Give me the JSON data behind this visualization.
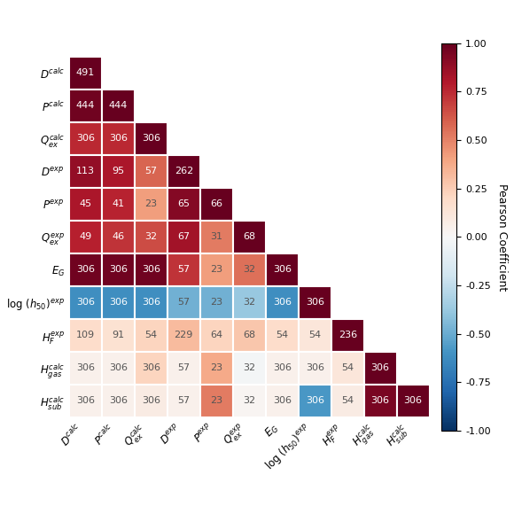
{
  "labels_y": [
    "$D^{calc}$",
    "$P^{calc}$",
    "$Q_{ex}^{calc}$",
    "$D^{exp}$",
    "$P^{exp}$",
    "$Q_{ex}^{exp}$",
    "$E_G$",
    "$\\log\\,(h_{50})^{exp}$",
    "$H_F^{exp}$",
    "$H_{gas}^{calc}$",
    "$H_{sub}^{calc}$"
  ],
  "labels_x": [
    "$D^{calc}$",
    "$P^{calc}$",
    "$Q_{ex}^{calc}$",
    "$D^{exp}$",
    "$P^{exp}$",
    "$Q_{ex}^{exp}$",
    "$E_G$",
    "$\\log\\,(h_{50})^{exp}$",
    "$H_F^{exp}$",
    "$H_{gas}^{calc}$",
    "$H_{sub}^{calc}$"
  ],
  "counts": [
    [
      491,
      null,
      null,
      null,
      null,
      null,
      null,
      null,
      null,
      null,
      null
    ],
    [
      444,
      444,
      null,
      null,
      null,
      null,
      null,
      null,
      null,
      null,
      null
    ],
    [
      306,
      306,
      306,
      null,
      null,
      null,
      null,
      null,
      null,
      null,
      null
    ],
    [
      113,
      95,
      57,
      262,
      null,
      null,
      null,
      null,
      null,
      null,
      null
    ],
    [
      45,
      41,
      23,
      65,
      66,
      null,
      null,
      null,
      null,
      null,
      null
    ],
    [
      49,
      46,
      32,
      67,
      31,
      68,
      null,
      null,
      null,
      null,
      null
    ],
    [
      306,
      306,
      306,
      57,
      23,
      32,
      306,
      null,
      null,
      null,
      null
    ],
    [
      306,
      306,
      306,
      57,
      23,
      32,
      306,
      306,
      null,
      null,
      null
    ],
    [
      109,
      91,
      54,
      229,
      64,
      68,
      54,
      54,
      236,
      null,
      null
    ],
    [
      306,
      306,
      306,
      57,
      23,
      32,
      306,
      306,
      54,
      306,
      null
    ],
    [
      306,
      306,
      306,
      57,
      23,
      32,
      306,
      306,
      54,
      306,
      306
    ]
  ],
  "correlations": [
    [
      1.0,
      null,
      null,
      null,
      null,
      null,
      null,
      null,
      null,
      null,
      null
    ],
    [
      0.97,
      1.0,
      null,
      null,
      null,
      null,
      null,
      null,
      null,
      null,
      null
    ],
    [
      0.75,
      0.75,
      1.0,
      null,
      null,
      null,
      null,
      null,
      null,
      null,
      null
    ],
    [
      0.88,
      0.82,
      0.58,
      1.0,
      null,
      null,
      null,
      null,
      null,
      null,
      null
    ],
    [
      0.82,
      0.77,
      0.42,
      0.92,
      1.0,
      null,
      null,
      null,
      null,
      null,
      null
    ],
    [
      0.78,
      0.72,
      0.65,
      0.84,
      0.52,
      1.0,
      null,
      null,
      null,
      null,
      null
    ],
    [
      0.97,
      0.97,
      0.97,
      0.72,
      0.42,
      0.55,
      1.0,
      null,
      null,
      null,
      null
    ],
    [
      -0.62,
      -0.62,
      -0.62,
      -0.48,
      -0.48,
      -0.38,
      -0.62,
      1.0,
      null,
      null,
      null
    ],
    [
      0.18,
      0.15,
      0.22,
      0.32,
      0.22,
      0.28,
      0.18,
      0.12,
      1.0,
      null,
      null
    ],
    [
      0.05,
      0.05,
      0.22,
      0.05,
      0.38,
      -0.02,
      0.05,
      0.05,
      0.12,
      1.0,
      null
    ],
    [
      0.05,
      0.05,
      0.08,
      0.05,
      0.52,
      0.02,
      0.05,
      -0.58,
      0.08,
      0.95,
      1.0
    ]
  ],
  "vmin": -1.0,
  "vmax": 1.0,
  "colorbar_ticks": [
    1.0,
    0.75,
    0.5,
    0.25,
    0.0,
    -0.25,
    -0.5,
    -0.75,
    -1.0
  ],
  "colorbar_label": "Pearson Coefficient"
}
